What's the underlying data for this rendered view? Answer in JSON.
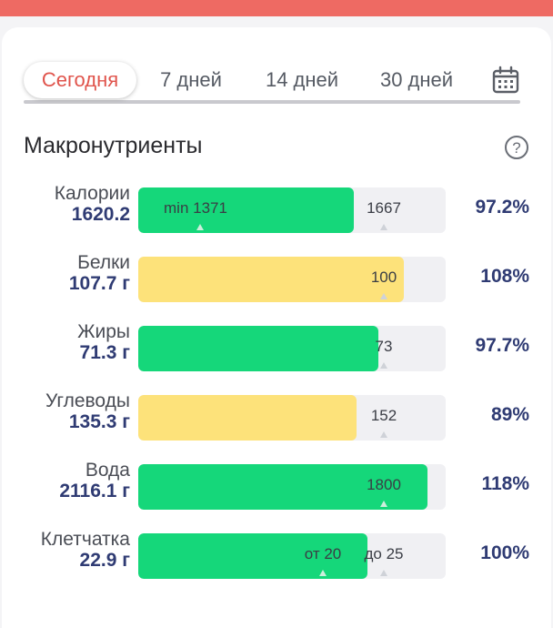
{
  "tabs": [
    {
      "label": "Сегодня",
      "active": true
    },
    {
      "label": "7 дней",
      "active": false
    },
    {
      "label": "14 дней",
      "active": false
    },
    {
      "label": "30 дней",
      "active": false
    }
  ],
  "section": {
    "title": "Макронутриенты"
  },
  "icons": {
    "calendar": "calendar-icon",
    "help": "question-mark-circle-icon"
  },
  "colors": {
    "accent": "#e0544c",
    "topbar": "#ee6a63",
    "green": "#15d77a",
    "yellow": "#fde27a",
    "value": "#2f3b73"
  },
  "macros": [
    {
      "name": "Калории",
      "value": "1620.2",
      "percent": "97.2%",
      "fill": 0.7,
      "color": "green",
      "marks": [
        {
          "label": "min 1371",
          "pos": 0.2,
          "label_left": true
        },
        {
          "label": "1667",
          "pos": 0.8
        }
      ]
    },
    {
      "name": "Белки",
      "value": "107.7 г",
      "percent": "108%",
      "fill": 0.865,
      "color": "yellow",
      "marks": [
        {
          "label": "100",
          "pos": 0.8
        }
      ]
    },
    {
      "name": "Жиры",
      "value": "71.3 г",
      "percent": "97.7%",
      "fill": 0.78,
      "color": "green",
      "marks": [
        {
          "label": "73",
          "pos": 0.8
        }
      ]
    },
    {
      "name": "Углеводы",
      "value": "135.3 г",
      "percent": "89%",
      "fill": 0.71,
      "color": "yellow",
      "marks": [
        {
          "label": "152",
          "pos": 0.8
        }
      ]
    },
    {
      "name": "Вода",
      "value": "2116.1 г",
      "percent": "118%",
      "fill": 0.94,
      "color": "green",
      "marks": [
        {
          "label": "1800",
          "pos": 0.8
        }
      ]
    },
    {
      "name": "Клетчатка",
      "value": "22.9 г",
      "percent": "100%",
      "fill": 0.745,
      "color": "green",
      "marks": [
        {
          "label": "от 20",
          "pos": 0.6
        },
        {
          "label": "до 25",
          "pos": 0.8
        }
      ]
    }
  ]
}
